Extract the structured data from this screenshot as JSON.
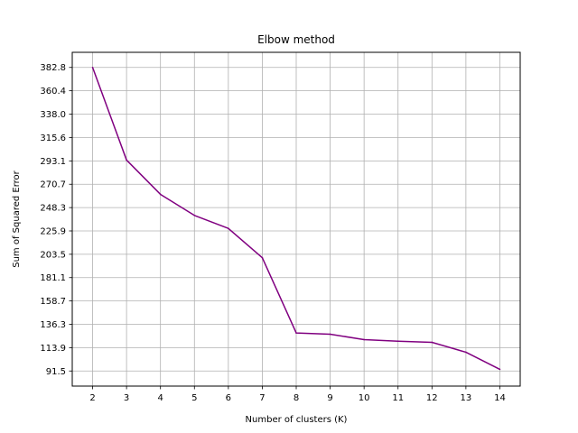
{
  "chart_data": {
    "type": "line",
    "title": "Elbow method",
    "xlabel": "Number of clusters (K)",
    "ylabel": "Sum of Squared Error",
    "x": [
      2,
      3,
      4,
      5,
      6,
      7,
      8,
      9,
      10,
      11,
      12,
      13,
      14
    ],
    "series": [
      {
        "values": [
          382.8,
          293.9,
          261.0,
          240.8,
          228.3,
          200.2,
          128.0,
          126.8,
          121.6,
          120.1,
          119.0,
          109.5,
          93.1
        ],
        "color": "#800080"
      }
    ],
    "xticks": [
      "2",
      "3",
      "4",
      "5",
      "6",
      "7",
      "8",
      "9",
      "10",
      "11",
      "12",
      "13",
      "14"
    ],
    "yticks": [
      "91.5",
      "113.9",
      "136.3",
      "158.7",
      "181.1",
      "203.5",
      "225.9",
      "248.3",
      "270.7",
      "293.1",
      "315.6",
      "338.0",
      "360.4",
      "382.8"
    ],
    "xlim": [
      1.4,
      14.6
    ],
    "ylim": [
      77.0,
      397.3
    ],
    "grid": true
  }
}
